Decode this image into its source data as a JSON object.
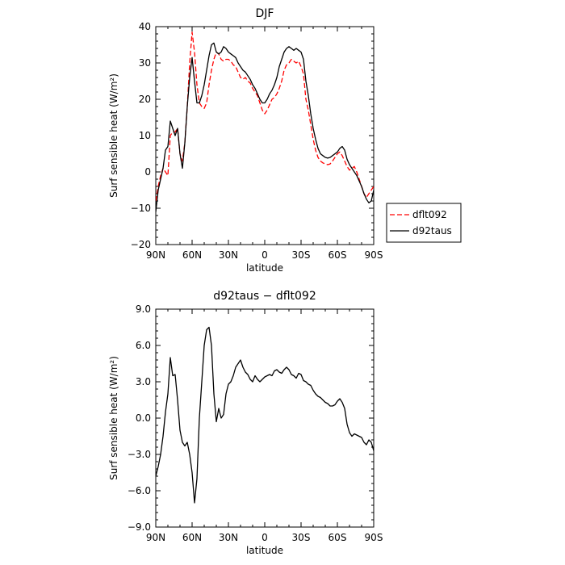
{
  "chart_data": [
    {
      "type": "line",
      "title": "DJF",
      "xlabel": "latitude",
      "ylabel": "Surf sensible heat (W/m²)",
      "x_ticks": [
        "90N",
        "60N",
        "30N",
        "0",
        "30S",
        "60S",
        "90S"
      ],
      "x_tick_values": [
        90,
        60,
        30,
        0,
        -30,
        -60,
        -90
      ],
      "y_ticks": [
        "40",
        "30",
        "20",
        "10",
        "0",
        "−10",
        "−20"
      ],
      "y_tick_values": [
        40,
        30,
        20,
        10,
        0,
        -10,
        -20
      ],
      "xlim": [
        90,
        -90
      ],
      "ylim": [
        -20,
        40
      ],
      "legend_position": "right",
      "x": [
        90,
        88,
        86,
        84,
        82,
        80,
        78,
        76,
        74,
        72,
        70,
        68,
        66,
        64,
        62,
        60,
        58,
        56,
        54,
        52,
        50,
        48,
        46,
        44,
        42,
        40,
        38,
        36,
        34,
        32,
        30,
        28,
        26,
        24,
        22,
        20,
        18,
        16,
        14,
        12,
        10,
        8,
        6,
        4,
        2,
        0,
        -2,
        -4,
        -6,
        -8,
        -10,
        -12,
        -14,
        -16,
        -18,
        -20,
        -22,
        -24,
        -26,
        -28,
        -30,
        -32,
        -34,
        -36,
        -38,
        -40,
        -42,
        -44,
        -46,
        -48,
        -50,
        -52,
        -54,
        -56,
        -58,
        -60,
        -62,
        -64,
        -66,
        -68,
        -70,
        -72,
        -74,
        -76,
        -78,
        -80,
        -82,
        -84,
        -86,
        -88,
        -90
      ],
      "series": [
        {
          "name": "dflt092",
          "color": "#ff0000",
          "dash": "dashed",
          "values": [
            -8,
            -4,
            -1,
            1,
            0,
            -1,
            10,
            11,
            11,
            12,
            5,
            3,
            8,
            18,
            30,
            38.5,
            33,
            24,
            19,
            18,
            17.5,
            19,
            24,
            28,
            31,
            33,
            32.5,
            31,
            30.5,
            31,
            31,
            30.5,
            29.5,
            29,
            27.5,
            26,
            25.5,
            26,
            25,
            24.5,
            23,
            22,
            21,
            19,
            17,
            16,
            17,
            18.5,
            20,
            20.5,
            21.5,
            23,
            25,
            28,
            29.5,
            30,
            31,
            30.5,
            30,
            30.5,
            29,
            27,
            20,
            17,
            13,
            9,
            6,
            4,
            3,
            2.5,
            2.2,
            2,
            2.2,
            3,
            4,
            5,
            5.5,
            4.5,
            3,
            1.5,
            0.5,
            1,
            1.5,
            0,
            -2,
            -4,
            -6,
            -7,
            -6,
            -5,
            -4
          ]
        },
        {
          "name": "d92taus",
          "color": "#000000",
          "dash": "solid",
          "values": [
            -11,
            -5,
            -2,
            1,
            6,
            7,
            14,
            12,
            10,
            12,
            5,
            1,
            8,
            18,
            26,
            31.5,
            25,
            19,
            19,
            21,
            24,
            28,
            32,
            35,
            35.5,
            33,
            32.5,
            33,
            34.5,
            34,
            33,
            32.5,
            32,
            31.5,
            30,
            29,
            28,
            27.5,
            26.5,
            25.5,
            24,
            23,
            21.5,
            20,
            19,
            19,
            20,
            21.5,
            22.5,
            24,
            26,
            29,
            31,
            33,
            34,
            34.5,
            34,
            33.5,
            34,
            33.5,
            33,
            31,
            25,
            21,
            16,
            12,
            9,
            6.5,
            5,
            4.5,
            4,
            3.8,
            4,
            4.5,
            5,
            5.5,
            6.5,
            7,
            6,
            3.5,
            2,
            1,
            0,
            -1,
            -2.5,
            -4,
            -6,
            -7.5,
            -8.5,
            -8,
            -5
          ]
        }
      ]
    },
    {
      "type": "line",
      "title": "d92taus − dflt092",
      "xlabel": "latitude",
      "ylabel": "Surf sensible heat (W/m²)",
      "x_ticks": [
        "90N",
        "60N",
        "30N",
        "0",
        "30S",
        "60S",
        "90S"
      ],
      "x_tick_values": [
        90,
        60,
        30,
        0,
        -30,
        -60,
        -90
      ],
      "y_ticks": [
        "9.0",
        "6.0",
        "3.0",
        "0.0",
        "−3.0",
        "−6.0",
        "−9.0"
      ],
      "y_tick_values": [
        9,
        6,
        3,
        0,
        -3,
        -6,
        -9
      ],
      "xlim": [
        90,
        -90
      ],
      "ylim": [
        -9,
        9
      ],
      "x": [
        90,
        88,
        86,
        84,
        82,
        80,
        78,
        76,
        74,
        72,
        70,
        68,
        66,
        64,
        62,
        60,
        58,
        56,
        54,
        52,
        50,
        48,
        46,
        44,
        42,
        40,
        38,
        36,
        34,
        32,
        30,
        28,
        26,
        24,
        22,
        20,
        18,
        16,
        14,
        12,
        10,
        8,
        6,
        4,
        2,
        0,
        -2,
        -4,
        -6,
        -8,
        -10,
        -12,
        -14,
        -16,
        -18,
        -20,
        -22,
        -24,
        -26,
        -28,
        -30,
        -32,
        -34,
        -36,
        -38,
        -40,
        -42,
        -44,
        -46,
        -48,
        -50,
        -52,
        -54,
        -56,
        -58,
        -60,
        -62,
        -64,
        -66,
        -68,
        -70,
        -72,
        -74,
        -76,
        -78,
        -80,
        -82,
        -84,
        -86,
        -88,
        -90
      ],
      "series": [
        {
          "name": "d92taus − dflt092",
          "color": "#000000",
          "dash": "solid",
          "values": [
            -4.8,
            -4,
            -3,
            -1.5,
            0.5,
            2,
            5,
            3.5,
            3.6,
            1.5,
            -1,
            -2,
            -2.3,
            -2,
            -3,
            -4.5,
            -7,
            -5,
            0,
            3,
            6,
            7.3,
            7.5,
            6,
            2,
            -0.3,
            0.8,
            0,
            0.3,
            2,
            2.8,
            3,
            3.5,
            4.2,
            4.5,
            4.8,
            4.2,
            3.8,
            3.6,
            3.2,
            3,
            3.5,
            3.2,
            3,
            3.2,
            3.4,
            3.5,
            3.6,
            3.5,
            3.9,
            4,
            3.8,
            3.7,
            4,
            4.2,
            4,
            3.6,
            3.5,
            3.3,
            3.7,
            3.6,
            3.1,
            3,
            2.8,
            2.7,
            2.3,
            2,
            1.8,
            1.7,
            1.5,
            1.3,
            1.2,
            1,
            1,
            1.1,
            1.4,
            1.6,
            1.3,
            0.8,
            -0.5,
            -1.2,
            -1.5,
            -1.3,
            -1.4,
            -1.5,
            -1.6,
            -2,
            -2.2,
            -1.8,
            -2,
            -2.7
          ]
        }
      ]
    }
  ]
}
